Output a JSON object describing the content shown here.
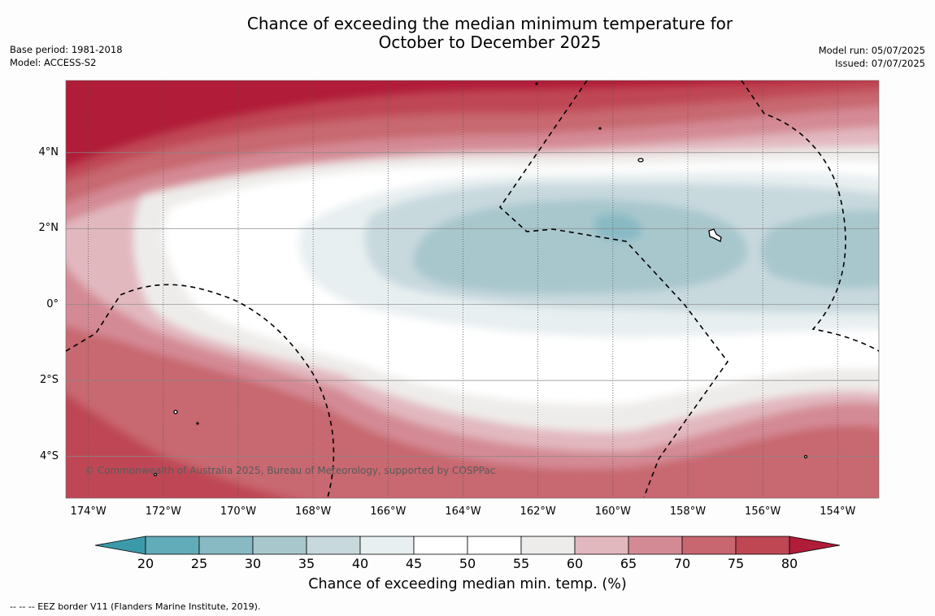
{
  "title": {
    "line1": "Chance of exceeding the median minimum temperature for",
    "line2": "October to December 2025"
  },
  "meta_left": {
    "base_period": "Base period: 1981-2018",
    "model": "Model: ACCESS-S2"
  },
  "meta_right": {
    "model_run": "Model run: 05/07/2025",
    "issued": "Issued: 07/07/2025"
  },
  "map": {
    "lon_range": [
      -174.6,
      -152.9
    ],
    "lat_range": [
      -5.1,
      5.9
    ],
    "lat_ticks": [
      {
        "value": 4,
        "label": "4°N"
      },
      {
        "value": 2,
        "label": "2°N"
      },
      {
        "value": 0,
        "label": "0°"
      },
      {
        "value": -2,
        "label": "2°S"
      },
      {
        "value": -4,
        "label": "4°S"
      }
    ],
    "lon_ticks": [
      {
        "value": -174,
        "label": "174°W"
      },
      {
        "value": -172,
        "label": "172°W"
      },
      {
        "value": -170,
        "label": "170°W"
      },
      {
        "value": -168,
        "label": "168°W"
      },
      {
        "value": -166,
        "label": "166°W"
      },
      {
        "value": -164,
        "label": "164°W"
      },
      {
        "value": -162,
        "label": "162°W"
      },
      {
        "value": -160,
        "label": "160°W"
      },
      {
        "value": -158,
        "label": "158°W"
      },
      {
        "value": -156,
        "label": "156°W"
      },
      {
        "value": -154,
        "label": "154°W"
      }
    ],
    "pattern": "Cool (below 50%) tongue centred on 1.5°N spanning 166°W to 153°W; warm (above 60%) north of 4°N and south of 2°S",
    "copyright": "© Commonwealth of Australia 2025, Bureau of Meteorology, supported by COSPPac"
  },
  "colorbar": {
    "ticks": [
      "20",
      "25",
      "30",
      "35",
      "40",
      "45",
      "50",
      "55",
      "60",
      "65",
      "70",
      "75",
      "80"
    ],
    "colors": [
      "#3b9aa9",
      "#62acb9",
      "#88bac4",
      "#a8c7cd",
      "#c8d9de",
      "#e8eff1",
      "#ffffff",
      "#ffffff",
      "#eeecea",
      "#e2b8bf",
      "#d48a94",
      "#c86770",
      "#bf4754",
      "#b11c38"
    ],
    "title": "Chance of exceeding median min. temp. (%)"
  },
  "footnote": "--  --  -- EEZ border V11 (Flanders Marine Institute, 2019)."
}
